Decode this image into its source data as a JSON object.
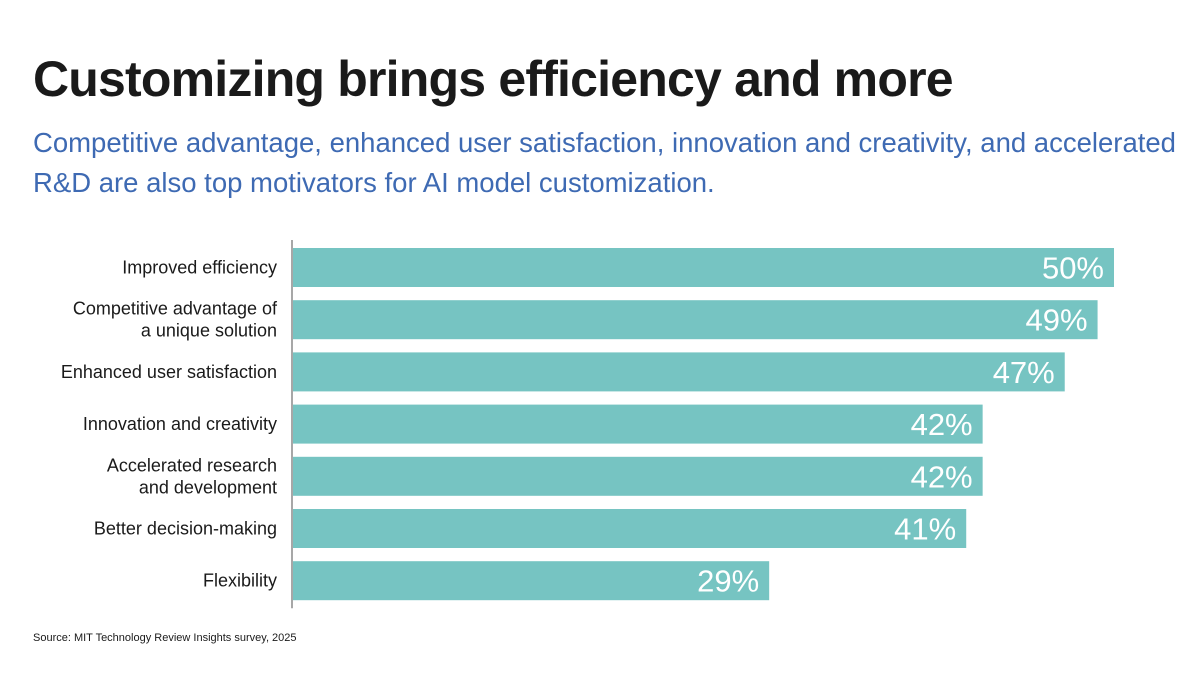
{
  "header": {
    "title": "Customizing brings efficiency and more",
    "subtitle": "Competitive advantage, enhanced user satisfaction, innovation and creativity, and accelerated R&D are also top motivators for AI model customization."
  },
  "chart_data": {
    "type": "bar",
    "orientation": "horizontal",
    "categories": [
      [
        "Improved efficiency"
      ],
      [
        "Competitive advantage of",
        "a unique solution"
      ],
      [
        "Enhanced user satisfaction"
      ],
      [
        "Innovation and creativity"
      ],
      [
        "Accelerated research",
        "and development"
      ],
      [
        "Better decision-making"
      ],
      [
        "Flexibility"
      ]
    ],
    "values": [
      50,
      49,
      47,
      42,
      42,
      41,
      29
    ],
    "value_labels": [
      "50%",
      "49%",
      "47%",
      "42%",
      "42%",
      "41%",
      "29%"
    ],
    "unit": "%",
    "xlim": [
      0,
      50
    ],
    "bar_color": "#76c4c2",
    "value_label_color": "#ffffff",
    "grid": false
  },
  "footer": {
    "source": "Source: MIT Technology Review Insights survey, 2025"
  }
}
